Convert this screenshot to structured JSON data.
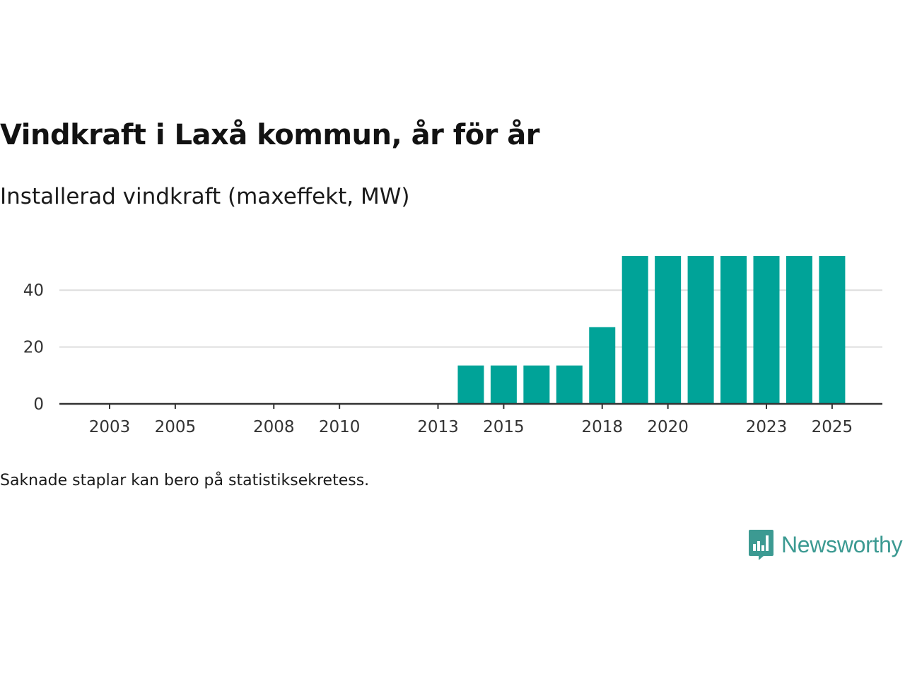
{
  "title": "Vindkraft i Laxå kommun, år för år",
  "subtitle": "Installerad vindkraft (maxeffekt, MW)",
  "footnote": "Saknade staplar kan bero på statistiksekretess.",
  "brand": {
    "name": "Newsworthy",
    "icon": "newsworthy-logo-icon"
  },
  "colors": {
    "bar": "#00a398",
    "grid": "#dddddd",
    "axis": "#333333",
    "brand": "#3c9a92"
  },
  "chart_data": {
    "type": "bar",
    "title": "Vindkraft i Laxå kommun, år för år",
    "ylabel": "Installerad vindkraft (maxeffekt, MW)",
    "xlabel": "",
    "categories": [
      2002,
      2003,
      2004,
      2005,
      2006,
      2007,
      2008,
      2009,
      2010,
      2011,
      2012,
      2013,
      2014,
      2015,
      2016,
      2017,
      2018,
      2019,
      2020,
      2021,
      2022,
      2023,
      2024,
      2025
    ],
    "values": [
      0,
      0,
      0,
      0,
      0,
      0,
      0,
      0,
      0,
      0,
      0,
      0,
      13.5,
      13.5,
      13.5,
      13.5,
      27,
      52,
      52,
      52,
      52,
      52,
      52,
      52
    ],
    "xticks": [
      "2003",
      "2005",
      "2008",
      "2010",
      "2013",
      "2015",
      "2018",
      "2020",
      "2023",
      "2025"
    ],
    "yticks": [
      0,
      20,
      40
    ],
    "ylim": [
      0,
      52
    ],
    "grid": true,
    "legend": "none"
  }
}
